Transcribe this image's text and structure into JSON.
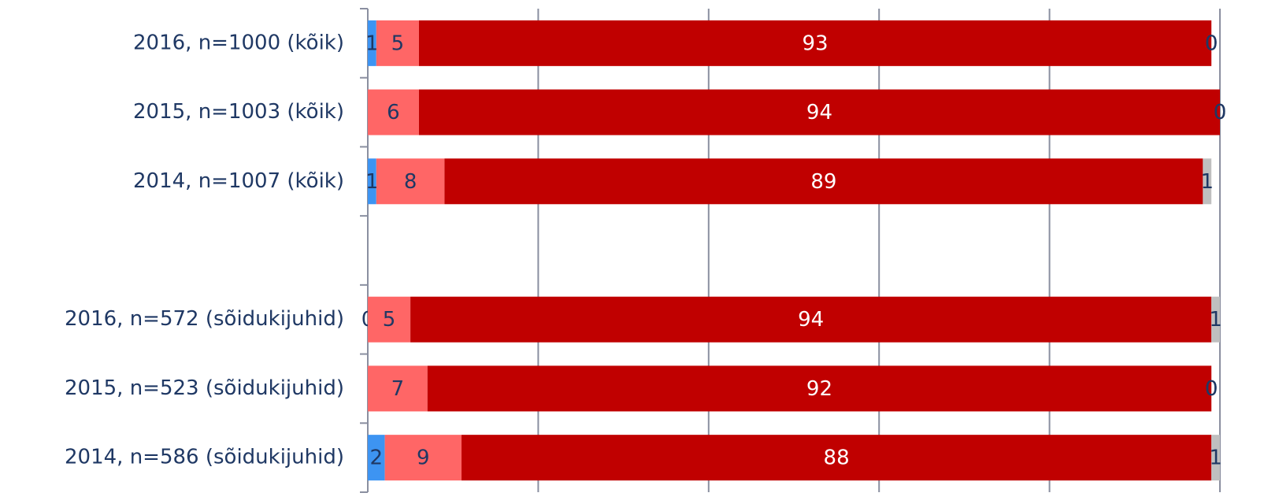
{
  "chart_data": {
    "type": "stacked-bar-horizontal",
    "categories": [
      "2016, n=1000 (kõik)",
      "2015, n=1003 (kõik)",
      "2014, n=1007 (kõik)",
      null,
      "2016, n=572 (sõidukijuhid)",
      "2015, n=523 (sõidukijuhid)",
      "2014, n=586 (sõidukijuhid)"
    ],
    "series": [
      {
        "color": "#3d94f2",
        "values": [
          1,
          null,
          1,
          null,
          0,
          null,
          2
        ]
      },
      {
        "color": "#ff6666",
        "values": [
          5,
          6,
          8,
          null,
          5,
          7,
          9
        ]
      },
      {
        "color": "#c00000",
        "values": [
          93,
          94,
          89,
          null,
          94,
          92,
          88
        ]
      },
      {
        "color": "#bfbfbf",
        "values": [
          0,
          0,
          1,
          null,
          1,
          0,
          1
        ]
      },
      {
        "color": "#d9d9d9",
        "values": [
          0,
          0,
          null,
          null,
          null,
          0,
          null
        ]
      }
    ],
    "xlim": [
      0,
      100
    ],
    "xticks": [
      0,
      20,
      40,
      60,
      80,
      100
    ],
    "grid": true
  }
}
